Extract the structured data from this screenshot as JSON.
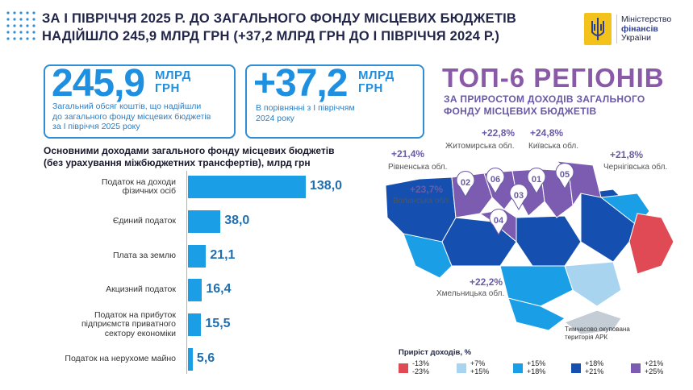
{
  "header": {
    "title_line1": "ЗА І ПІВРІЧЧЯ 2025 Р. ДО ЗАГАЛЬНОГО ФОНДУ МІСЦЕВИХ БЮДЖЕТІВ",
    "title_line2": "НАДІЙШЛО 245,9 МЛРД ГРН (+37,2 МЛРД ГРН ДО І ПІВРІЧЧЯ 2024 Р.)",
    "logo_line1": "Міністерство",
    "logo_line2": "фінансів",
    "logo_line3": "України"
  },
  "cards": [
    {
      "value": "245,9",
      "unit_line1": "МЛРД",
      "unit_line2": "ГРН",
      "desc_line1": "Загальний обсяг коштів, що надійшли",
      "desc_line2": "до загального фонду місцевих бюджетів",
      "desc_line3": "за І півріччя 2025 року"
    },
    {
      "value": "+37,2",
      "unit_line1": "МЛРД",
      "unit_line2": "ГРН",
      "desc_line1": "В порівнянні з І півріччям",
      "desc_line2": "2024 року"
    }
  ],
  "top6": {
    "title": "ТОП-6 РЕГІОНІВ",
    "subtitle_line1": "ЗА ПРИРОСТОМ ДОХОДІВ ЗАГАЛЬНОГО",
    "subtitle_line2": "ФОНДУ МІСЦЕВИХ БЮДЖЕТІВ",
    "regions": [
      {
        "rank": "01",
        "pct": "+24,8%",
        "name": "Київська обл."
      },
      {
        "rank": "02",
        "pct": "+21,4%",
        "name": "Рівненська обл."
      },
      {
        "rank": "03",
        "pct": "+23,7%",
        "name": "Волинська обл."
      },
      {
        "rank": "04",
        "pct": "+22,2%",
        "name": "Хмельницька обл."
      },
      {
        "rank": "05",
        "pct": "+21,8%",
        "name": "Чернігівська обл."
      },
      {
        "rank": "06",
        "pct": "+22,8%",
        "name": "Житомирська обл."
      }
    ],
    "occupied_line1": "Тимчасово окупована",
    "occupied_line2": "територія АРК"
  },
  "legend": {
    "title": "Приріст доходів, %",
    "items": [
      {
        "line1": "-13%",
        "line2": "-23%",
        "color": "#e04a55"
      },
      {
        "line1": "+7%",
        "line2": "+15%",
        "color": "#a9d4f0"
      },
      {
        "line1": "+15%",
        "line2": "+18%",
        "color": "#1a9ee6"
      },
      {
        "line1": "+18%",
        "line2": "+21%",
        "color": "#1550b0"
      },
      {
        "line1": "+21%",
        "line2": "+25%",
        "color": "#7b5cb0"
      }
    ]
  },
  "chart_data": {
    "type": "bar",
    "orientation": "horizontal",
    "title_line1": "Основними доходами загального фонду місцевих бюджетів",
    "title_line2": "(без урахування міжбюджетних трансфертів), млрд грн",
    "categories": [
      [
        "Податок на доходи",
        "фізичних осіб"
      ],
      [
        "Єдиний податок"
      ],
      [
        "Плата за землю"
      ],
      [
        "Акцизний податок"
      ],
      [
        "Податок на прибуток",
        "підприємств приватного",
        "сектору економіки"
      ],
      [
        "Податок на нерухоме майно"
      ]
    ],
    "values": [
      138.0,
      38.0,
      21.1,
      16.4,
      15.5,
      5.6
    ],
    "value_labels": [
      "138,0",
      "38,0",
      "21,1",
      "16,4",
      "15,5",
      "5,6"
    ],
    "bar_color": "#1a9ee6"
  }
}
